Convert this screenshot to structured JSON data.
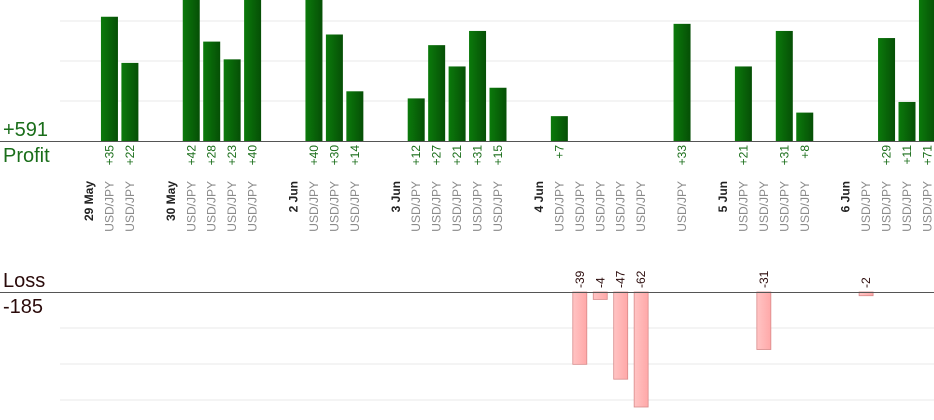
{
  "summary": {
    "profit_total": "+591",
    "profit_label": "Profit",
    "loss_label": "Loss",
    "loss_total": "-185"
  },
  "colors": {
    "profit_bar": "#0a6a0a",
    "profit_text": "#1a6e1a",
    "loss_bar": "#ffb3b3",
    "loss_edge": "#d88a8a",
    "loss_text": "#2a0a0a",
    "date_text": "#222222",
    "pair_text": "#8a8a8a",
    "axis": "#555555",
    "grid": "#e8e8e8"
  },
  "chart_data": {
    "type": "bar",
    "layout": "diverging",
    "profit_scale_max": 40,
    "loss_scale_max": 62,
    "grid": true,
    "columns": [
      {
        "date": "29 May"
      },
      {
        "pair": "USD/JPY",
        "profit": 35
      },
      {
        "pair": "USD/JPY",
        "profit": 22
      },
      {
        "gap": true
      },
      {
        "date": "30 May"
      },
      {
        "pair": "USD/JPY",
        "profit": 42
      },
      {
        "pair": "USD/JPY",
        "profit": 28
      },
      {
        "pair": "USD/JPY",
        "profit": 23
      },
      {
        "pair": "USD/JPY",
        "profit": 40
      },
      {
        "gap": true
      },
      {
        "date": "2 Jun"
      },
      {
        "pair": "USD/JPY",
        "profit": 40
      },
      {
        "pair": "USD/JPY",
        "profit": 30
      },
      {
        "pair": "USD/JPY",
        "profit": 14
      },
      {
        "gap": true
      },
      {
        "date": "3 Jun"
      },
      {
        "pair": "USD/JPY",
        "profit": 12
      },
      {
        "pair": "USD/JPY",
        "profit": 27
      },
      {
        "pair": "USD/JPY",
        "profit": 21
      },
      {
        "pair": "USD/JPY",
        "profit": 31
      },
      {
        "pair": "USD/JPY",
        "profit": 15
      },
      {
        "gap": true
      },
      {
        "date": "4 Jun"
      },
      {
        "pair": "USD/JPY",
        "profit": 7
      },
      {
        "pair": "USD/JPY",
        "loss": -39
      },
      {
        "pair": "USD/JPY",
        "loss": -4
      },
      {
        "pair": "USD/JPY",
        "loss": -47
      },
      {
        "pair": "USD/JPY",
        "loss": -62
      },
      {
        "gap": true
      },
      {
        "pair": "USD/JPY",
        "profit": 33
      },
      {
        "gap": true
      },
      {
        "date": "5 Jun"
      },
      {
        "pair": "USD/JPY",
        "profit": 21
      },
      {
        "pair": "USD/JPY",
        "loss": -31
      },
      {
        "pair": "USD/JPY",
        "profit": 31
      },
      {
        "pair": "USD/JPY",
        "profit": 8
      },
      {
        "gap": true
      },
      {
        "date": "6 Jun"
      },
      {
        "pair": "USD/JPY",
        "loss": -2
      },
      {
        "pair": "USD/JPY",
        "profit": 29
      },
      {
        "pair": "USD/JPY",
        "profit": 11
      },
      {
        "pair": "USD/JPY",
        "profit": 71
      }
    ]
  }
}
